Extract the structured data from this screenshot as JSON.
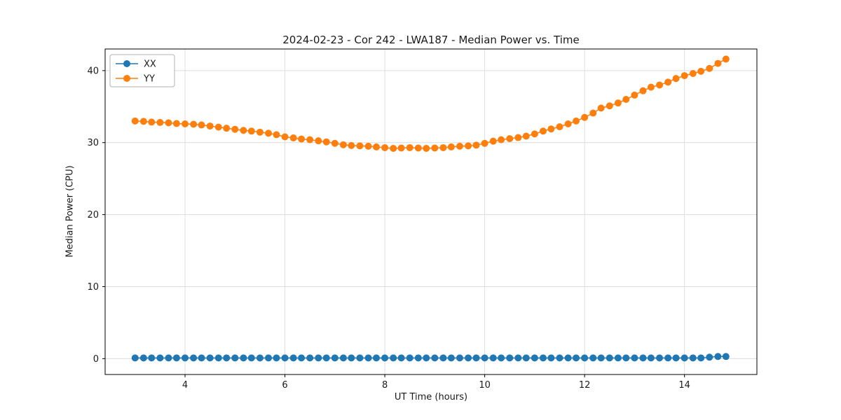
{
  "chart_data": {
    "type": "line",
    "title": "2024-02-23 - Cor 242 - LWA187 - Median Power vs. Time",
    "xlabel": "UT Time (hours)",
    "ylabel": "Median Power (CPU)",
    "xlim": [
      2.4,
      15.45
    ],
    "ylim": [
      -2.2,
      43.0
    ],
    "xticks": [
      4,
      6,
      8,
      10,
      12,
      14
    ],
    "yticks": [
      0,
      10,
      20,
      30,
      40
    ],
    "grid": true,
    "legend_position": "upper left",
    "marker": "circle",
    "x": [
      3.0,
      3.17,
      3.33,
      3.5,
      3.67,
      3.83,
      4.0,
      4.17,
      4.33,
      4.5,
      4.67,
      4.83,
      5.0,
      5.17,
      5.33,
      5.5,
      5.67,
      5.83,
      6.0,
      6.17,
      6.33,
      6.5,
      6.67,
      6.83,
      7.0,
      7.17,
      7.33,
      7.5,
      7.67,
      7.83,
      8.0,
      8.17,
      8.33,
      8.5,
      8.67,
      8.83,
      9.0,
      9.17,
      9.33,
      9.5,
      9.67,
      9.83,
      10.0,
      10.17,
      10.33,
      10.5,
      10.67,
      10.83,
      11.0,
      11.17,
      11.33,
      11.5,
      11.67,
      11.83,
      12.0,
      12.17,
      12.33,
      12.5,
      12.67,
      12.83,
      13.0,
      13.17,
      13.33,
      13.5,
      13.67,
      13.83,
      14.0,
      14.17,
      14.33,
      14.5,
      14.67,
      14.83
    ],
    "series": [
      {
        "name": "XX",
        "color": "#1f77b4",
        "values": [
          0.1,
          0.1,
          0.1,
          0.1,
          0.1,
          0.1,
          0.1,
          0.1,
          0.1,
          0.1,
          0.1,
          0.1,
          0.1,
          0.1,
          0.1,
          0.1,
          0.1,
          0.1,
          0.1,
          0.1,
          0.1,
          0.1,
          0.1,
          0.1,
          0.1,
          0.1,
          0.1,
          0.1,
          0.1,
          0.1,
          0.1,
          0.1,
          0.1,
          0.1,
          0.1,
          0.1,
          0.1,
          0.1,
          0.1,
          0.1,
          0.1,
          0.1,
          0.1,
          0.1,
          0.1,
          0.1,
          0.1,
          0.1,
          0.1,
          0.1,
          0.1,
          0.1,
          0.1,
          0.1,
          0.1,
          0.1,
          0.1,
          0.1,
          0.1,
          0.1,
          0.1,
          0.1,
          0.1,
          0.1,
          0.1,
          0.1,
          0.1,
          0.1,
          0.1,
          0.2,
          0.3,
          0.3
        ]
      },
      {
        "name": "YY",
        "color": "#ff7f0e",
        "values": [
          33.0,
          32.95,
          32.85,
          32.8,
          32.75,
          32.65,
          32.6,
          32.55,
          32.45,
          32.3,
          32.15,
          32.0,
          31.85,
          31.7,
          31.6,
          31.45,
          31.3,
          31.1,
          30.8,
          30.65,
          30.5,
          30.4,
          30.25,
          30.1,
          29.9,
          29.7,
          29.6,
          29.55,
          29.5,
          29.4,
          29.3,
          29.2,
          29.25,
          29.3,
          29.25,
          29.2,
          29.25,
          29.3,
          29.4,
          29.5,
          29.55,
          29.65,
          29.9,
          30.2,
          30.4,
          30.55,
          30.7,
          30.9,
          31.2,
          31.6,
          31.9,
          32.2,
          32.6,
          33.0,
          33.5,
          34.1,
          34.8,
          35.1,
          35.5,
          36.0,
          36.6,
          37.2,
          37.7,
          38.0,
          38.4,
          38.9,
          39.3,
          39.6,
          39.9,
          40.3,
          41.0,
          41.6
        ]
      }
    ]
  }
}
